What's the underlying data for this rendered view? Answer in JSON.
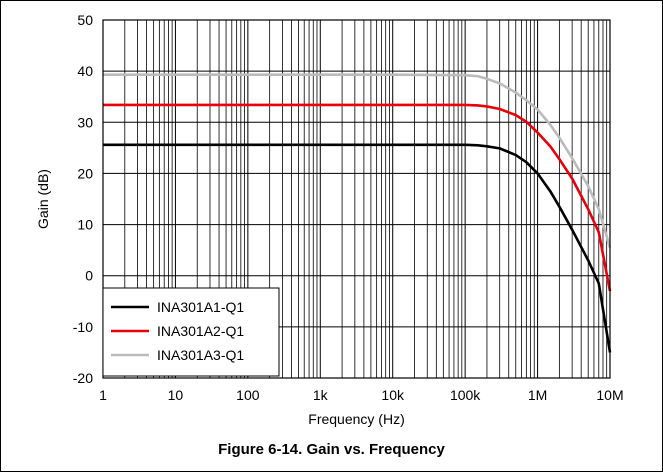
{
  "caption": "Figure 6-14. Gain vs. Frequency",
  "chart_data": {
    "type": "line",
    "title": "",
    "xlabel": "Frequency (Hz)",
    "ylabel": "Gain (dB)",
    "x_scale": "log",
    "xlim": [
      1,
      10000000
    ],
    "ylim": [
      -20,
      50
    ],
    "grid": true,
    "legend_position": "bottom-left",
    "x_ticks": [
      {
        "value": 1,
        "label": "1"
      },
      {
        "value": 10,
        "label": "10"
      },
      {
        "value": 100,
        "label": "100"
      },
      {
        "value": 1000,
        "label": "1k"
      },
      {
        "value": 10000,
        "label": "10k"
      },
      {
        "value": 100000,
        "label": "100k"
      },
      {
        "value": 1000000,
        "label": "1M"
      },
      {
        "value": 10000000,
        "label": "10M"
      }
    ],
    "y_ticks": [
      -20,
      -10,
      0,
      10,
      20,
      30,
      40,
      50
    ],
    "series": [
      {
        "name": "INA301A1-Q1",
        "color": "#000000",
        "x": [
          1,
          10,
          100,
          1000,
          10000,
          100000,
          150000,
          200000,
          300000,
          500000,
          700000,
          1000000,
          1500000,
          2000000,
          3000000,
          5000000,
          7000000,
          10000000
        ],
        "y": [
          25.6,
          25.6,
          25.6,
          25.6,
          25.6,
          25.6,
          25.5,
          25.3,
          24.9,
          23.6,
          22.2,
          20.0,
          16.5,
          13.5,
          9.0,
          3.0,
          -1.5,
          -15.0
        ]
      },
      {
        "name": "INA301A2-Q1",
        "color": "#e8000b",
        "x": [
          1,
          10,
          100,
          1000,
          10000,
          100000,
          150000,
          200000,
          300000,
          500000,
          700000,
          1000000,
          1500000,
          2000000,
          3000000,
          5000000,
          7000000,
          10000000
        ],
        "y": [
          33.4,
          33.4,
          33.4,
          33.4,
          33.4,
          33.4,
          33.3,
          33.1,
          32.6,
          31.4,
          30.1,
          28.0,
          25.3,
          22.8,
          19.0,
          13.0,
          8.5,
          -3.0
        ]
      },
      {
        "name": "INA301A3-Q1",
        "color": "#bbbbbb",
        "x": [
          1,
          10,
          100,
          1000,
          10000,
          100000,
          150000,
          200000,
          300000,
          500000,
          700000,
          1000000,
          1500000,
          2000000,
          3000000,
          5000000,
          7000000,
          10000000
        ],
        "y": [
          39.3,
          39.3,
          39.3,
          39.3,
          39.3,
          39.2,
          39.0,
          38.5,
          37.6,
          35.8,
          34.3,
          32.5,
          29.5,
          27.0,
          23.0,
          17.5,
          13.0,
          5.5
        ]
      }
    ]
  }
}
